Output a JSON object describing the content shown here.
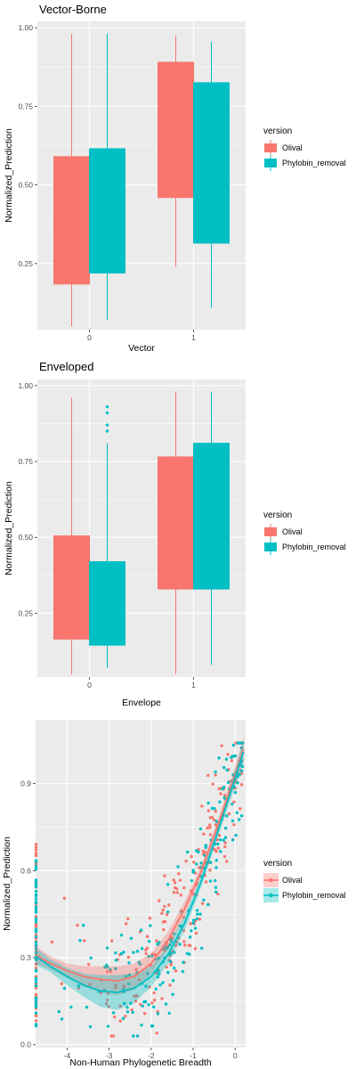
{
  "colors": {
    "olival": "#F8766D",
    "phylobin": "#00BFC4",
    "panel": "#EBEBEB",
    "grid": "#FFFFFF"
  },
  "chart_data": [
    {
      "type": "box",
      "title": "Vector-Borne",
      "xlabel": "Vector",
      "ylabel": "Normalized_Prediction",
      "categories": [
        "0",
        "1"
      ],
      "yticks": [
        "0.25",
        "0.50",
        "0.75",
        "1.00"
      ],
      "ylim": [
        0.04,
        1.02
      ],
      "grid": true,
      "legend": {
        "title": "version",
        "position": "right",
        "entries": [
          "Olival",
          "Phylobin_removal"
        ]
      },
      "series": [
        {
          "name": "Olival",
          "boxes": [
            {
              "min": 0.05,
              "q1": 0.185,
              "median": 0.41,
              "q3": 0.59,
              "max": 0.98,
              "outliers": []
            },
            {
              "min": 0.24,
              "q1": 0.46,
              "median": 0.69,
              "q3": 0.89,
              "max": 0.975,
              "outliers": []
            }
          ]
        },
        {
          "name": "Phylobin_removal",
          "boxes": [
            {
              "min": 0.07,
              "q1": 0.22,
              "median": 0.43,
              "q3": 0.615,
              "max": 0.98,
              "outliers": []
            },
            {
              "min": 0.11,
              "q1": 0.315,
              "median": 0.53,
              "q3": 0.825,
              "max": 0.955,
              "outliers": []
            }
          ]
        }
      ]
    },
    {
      "type": "box",
      "title": "Enveloped",
      "xlabel": "Envelope",
      "ylabel": "Normalized_Prediction",
      "categories": [
        "0",
        "1"
      ],
      "yticks": [
        "0.25",
        "0.50",
        "0.75",
        "1.00"
      ],
      "ylim": [
        0.04,
        1.02
      ],
      "grid": true,
      "legend": {
        "title": "version",
        "position": "right",
        "entries": [
          "Olival",
          "Phylobin_removal"
        ]
      },
      "series": [
        {
          "name": "Olival",
          "boxes": [
            {
              "min": 0.05,
              "q1": 0.165,
              "median": 0.32,
              "q3": 0.505,
              "max": 0.96,
              "outliers": []
            },
            {
              "min": 0.05,
              "q1": 0.33,
              "median": 0.54,
              "q3": 0.765,
              "max": 0.98,
              "outliers": []
            }
          ]
        },
        {
          "name": "Phylobin_removal",
          "boxes": [
            {
              "min": 0.07,
              "q1": 0.145,
              "median": 0.27,
              "q3": 0.42,
              "max": 0.81,
              "outliers": [
                0.85,
                0.87,
                0.91,
                0.93
              ]
            },
            {
              "min": 0.08,
              "q1": 0.33,
              "median": 0.58,
              "q3": 0.81,
              "max": 0.98,
              "outliers": []
            }
          ]
        }
      ]
    },
    {
      "type": "scatter",
      "subtype": "scatter with loess smooth and confidence band",
      "title": "",
      "xlabel": "Non-Human Phylogenetic Breadth",
      "ylabel": "Normalized_Prediction",
      "xticks": [
        "-4",
        "-3",
        "-2",
        "-1",
        "0"
      ],
      "yticks": [
        "0.0",
        "0.3",
        "0.6",
        "0.9"
      ],
      "xlim": [
        -4.75,
        0.25
      ],
      "ylim": [
        -0.01,
        1.12
      ],
      "grid": true,
      "legend": {
        "title": "version",
        "position": "right",
        "entries": [
          "Olival",
          "Phylobin_removal"
        ]
      },
      "series": [
        {
          "name": "Olival",
          "smooth": {
            "x": [
              -4.75,
              -4.4,
              -4.0,
              -3.6,
              -3.2,
              -2.8,
              -2.4,
              -2.0,
              -1.6,
              -1.2,
              -0.8,
              -0.4,
              0.0,
              0.2
            ],
            "y": [
              0.31,
              0.28,
              0.255,
              0.235,
              0.225,
              0.22,
              0.235,
              0.28,
              0.36,
              0.47,
              0.6,
              0.76,
              0.93,
              1.02
            ],
            "lower": [
              0.28,
              0.26,
              0.23,
              0.2,
              0.18,
              0.17,
              0.19,
              0.245,
              0.33,
              0.445,
              0.58,
              0.74,
              0.9,
              0.98
            ],
            "upper": [
              0.34,
              0.305,
              0.28,
              0.27,
              0.27,
              0.27,
              0.28,
              0.315,
              0.39,
              0.495,
              0.62,
              0.78,
              0.96,
              1.06
            ]
          }
        },
        {
          "name": "Phylobin_removal",
          "smooth": {
            "x": [
              -4.75,
              -4.4,
              -4.0,
              -3.6,
              -3.2,
              -2.8,
              -2.4,
              -2.0,
              -1.6,
              -1.2,
              -0.8,
              -0.4,
              0.0,
              0.2
            ],
            "y": [
              0.305,
              0.27,
              0.235,
              0.205,
              0.185,
              0.18,
              0.195,
              0.235,
              0.31,
              0.42,
              0.565,
              0.74,
              0.92,
              1.01
            ],
            "lower": [
              0.275,
              0.25,
              0.205,
              0.165,
              0.13,
              0.12,
              0.145,
              0.2,
              0.28,
              0.395,
              0.545,
              0.72,
              0.89,
              0.97
            ],
            "upper": [
              0.335,
              0.295,
              0.265,
              0.245,
              0.24,
              0.24,
              0.245,
              0.27,
              0.34,
              0.445,
              0.585,
              0.76,
              0.95,
              1.05
            ]
          }
        }
      ]
    }
  ]
}
